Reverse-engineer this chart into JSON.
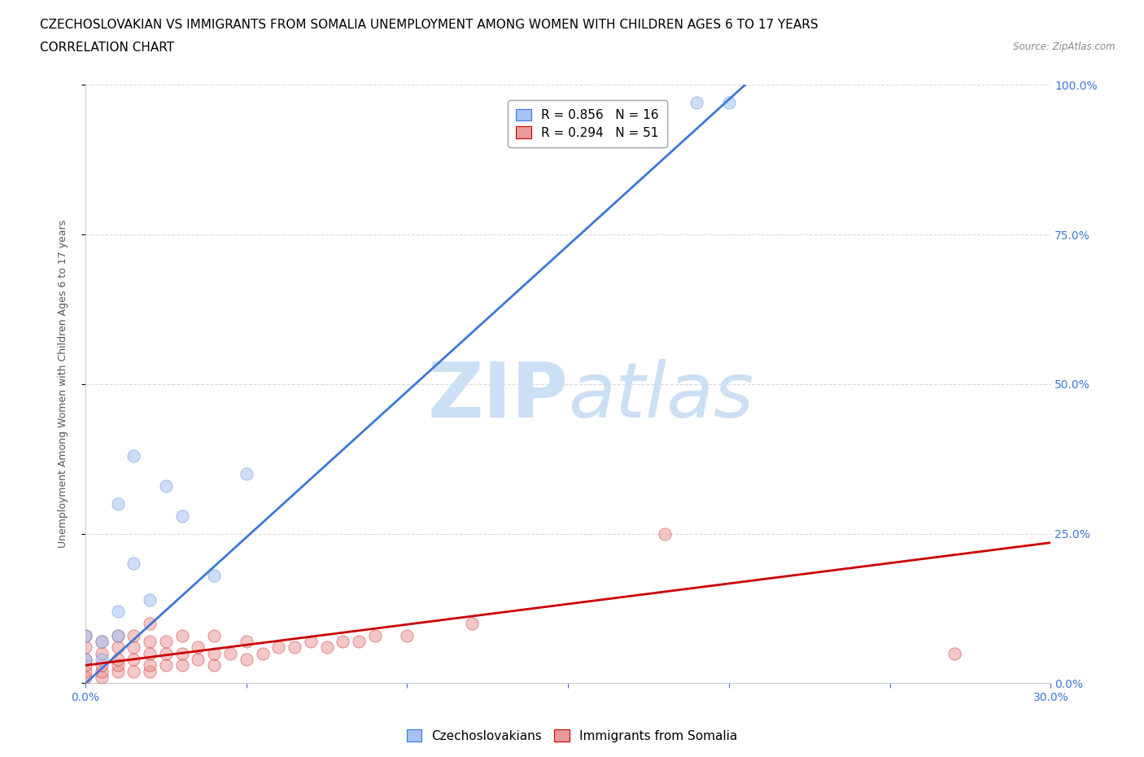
{
  "title_line1": "CZECHOSLOVAKIAN VS IMMIGRANTS FROM SOMALIA UNEMPLOYMENT AMONG WOMEN WITH CHILDREN AGES 6 TO 17 YEARS",
  "title_line2": "CORRELATION CHART",
  "source_text": "Source: ZipAtlas.com",
  "ylabel": "Unemployment Among Women with Children Ages 6 to 17 years",
  "xlim": [
    0.0,
    0.3
  ],
  "ylim": [
    0.0,
    1.0
  ],
  "xtick_labels": [
    "0.0%",
    "",
    "",
    "",
    "",
    "",
    "30.0%"
  ],
  "xtick_values": [
    0.0,
    0.05,
    0.1,
    0.15,
    0.2,
    0.25,
    0.3
  ],
  "ytick_values_left": [
    0.0,
    0.25,
    0.5,
    0.75,
    1.0
  ],
  "ytick_labels_right": [
    "0.0%",
    "25.0%",
    "50.0%",
    "75.0%",
    "100.0%"
  ],
  "ytick_values_right": [
    0.0,
    0.25,
    0.5,
    0.75,
    1.0
  ],
  "blue_color": "#a4c2f4",
  "blue_edge_color": "#3c78d8",
  "pink_color": "#ea9999",
  "pink_edge_color": "#cc0000",
  "legend_blue_R": "R = 0.856",
  "legend_blue_N": "N = 16",
  "legend_pink_R": "R = 0.294",
  "legend_pink_N": "N = 51",
  "blue_scatter_x": [
    0.0,
    0.0,
    0.005,
    0.005,
    0.01,
    0.01,
    0.01,
    0.015,
    0.015,
    0.02,
    0.025,
    0.03,
    0.04,
    0.05,
    0.19,
    0.2
  ],
  "blue_scatter_y": [
    0.04,
    0.08,
    0.04,
    0.07,
    0.08,
    0.12,
    0.3,
    0.2,
    0.38,
    0.14,
    0.33,
    0.28,
    0.18,
    0.35,
    0.97,
    0.97
  ],
  "pink_scatter_x": [
    0.0,
    0.0,
    0.0,
    0.0,
    0.0,
    0.0,
    0.005,
    0.005,
    0.005,
    0.005,
    0.005,
    0.01,
    0.01,
    0.01,
    0.01,
    0.01,
    0.015,
    0.015,
    0.015,
    0.015,
    0.02,
    0.02,
    0.02,
    0.02,
    0.02,
    0.025,
    0.025,
    0.025,
    0.03,
    0.03,
    0.03,
    0.035,
    0.035,
    0.04,
    0.04,
    0.04,
    0.045,
    0.05,
    0.05,
    0.055,
    0.06,
    0.065,
    0.07,
    0.075,
    0.08,
    0.085,
    0.09,
    0.1,
    0.12,
    0.18,
    0.27
  ],
  "pink_scatter_y": [
    0.01,
    0.02,
    0.03,
    0.04,
    0.06,
    0.08,
    0.01,
    0.02,
    0.03,
    0.05,
    0.07,
    0.02,
    0.03,
    0.04,
    0.06,
    0.08,
    0.02,
    0.04,
    0.06,
    0.08,
    0.02,
    0.03,
    0.05,
    0.07,
    0.1,
    0.03,
    0.05,
    0.07,
    0.03,
    0.05,
    0.08,
    0.04,
    0.06,
    0.03,
    0.05,
    0.08,
    0.05,
    0.04,
    0.07,
    0.05,
    0.06,
    0.06,
    0.07,
    0.06,
    0.07,
    0.07,
    0.08,
    0.08,
    0.1,
    0.25,
    0.05
  ],
  "blue_line_x": [
    0.0,
    0.205
  ],
  "blue_line_y": [
    0.0,
    1.0
  ],
  "pink_line_x": [
    0.0,
    0.3
  ],
  "pink_line_y": [
    0.03,
    0.235
  ],
  "watermark_text1": "ZIP",
  "watermark_text2": "atlas",
  "watermark_color": "#cce0f5",
  "background_color": "#ffffff",
  "title_color": "#000000",
  "tick_color_right": "#3c78d8",
  "tick_color_bottom": "#3c78d8",
  "grid_color": "#d9d9d9",
  "title_fontsize": 11,
  "subtitle_fontsize": 11,
  "axis_label_fontsize": 9,
  "tick_fontsize": 10,
  "legend_fontsize": 11,
  "scatter_size": 120,
  "scatter_alpha": 0.55,
  "line_width": 2.0
}
